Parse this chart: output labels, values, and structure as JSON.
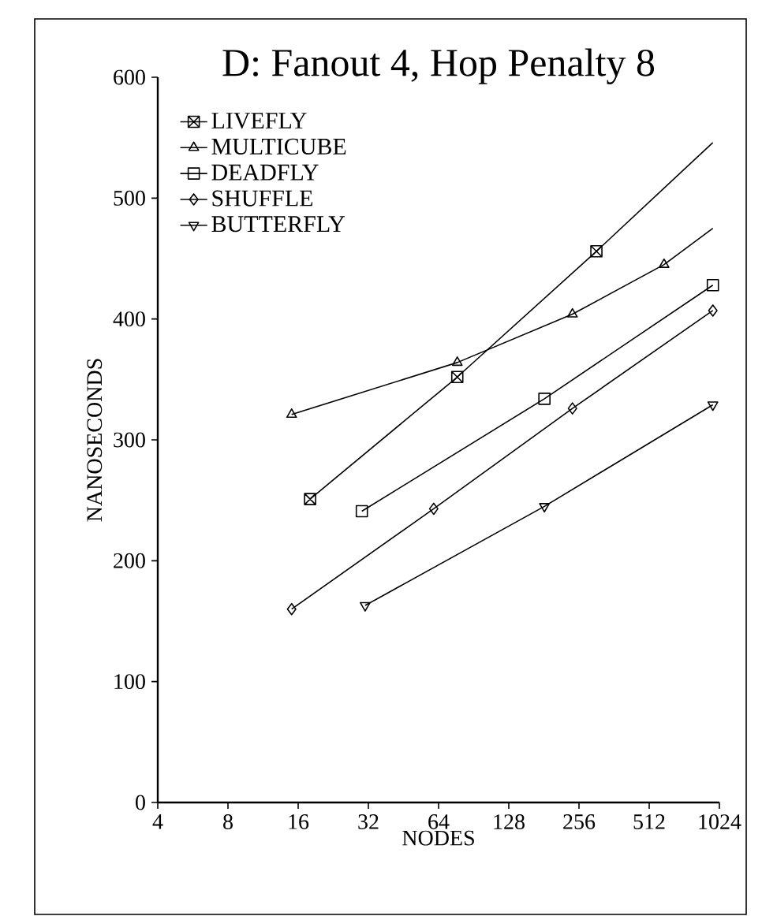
{
  "chart_data": {
    "type": "line",
    "title": "D: Fanout 4, Hop Penalty 8",
    "xlabel": "NODES",
    "ylabel": "NANOSECONDS",
    "log": "x",
    "xlim": [
      4,
      1024
    ],
    "ylim": [
      0,
      600
    ],
    "xticks": [
      4,
      8,
      16,
      32,
      64,
      128,
      256,
      512,
      1024
    ],
    "yticks": [
      0,
      100,
      200,
      300,
      400,
      500,
      600
    ],
    "grid": false,
    "legend": "top left",
    "series": [
      {
        "name": "LIVEFLY",
        "color": "#000000",
        "marker": "cross",
        "x": [
          18,
          77,
          304
        ],
        "values": [
          251,
          352,
          456
        ]
      },
      {
        "name": "MULTICUBE",
        "color": "#000000",
        "marker": "triangle",
        "x": [
          15,
          77,
          240,
          593
        ],
        "values": [
          321,
          364,
          404,
          445
        ]
      },
      {
        "name": "DEADFLY",
        "color": "#000000",
        "marker": "square",
        "x": [
          30,
          182,
          960
        ],
        "values": [
          241,
          334,
          428
        ]
      },
      {
        "name": "SHUFFLE",
        "color": "#000000",
        "marker": "diamond",
        "x": [
          15,
          61,
          240,
          960
        ],
        "values": [
          160,
          243,
          326,
          407
        ]
      },
      {
        "name": "BUTTERFLY",
        "color": "#000000",
        "marker": "triangle-down",
        "x": [
          31,
          182,
          960
        ],
        "values": [
          163,
          245,
          329
        ]
      },
      {
        "color": "#000000",
        "marker": "none",
        "x": [
          304,
          960
        ],
        "values": [
          456,
          546
        ]
      },
      {
        "color": "#000000",
        "marker": "none",
        "x": [
          593,
          960
        ],
        "values": [
          445,
          475
        ]
      }
    ]
  }
}
